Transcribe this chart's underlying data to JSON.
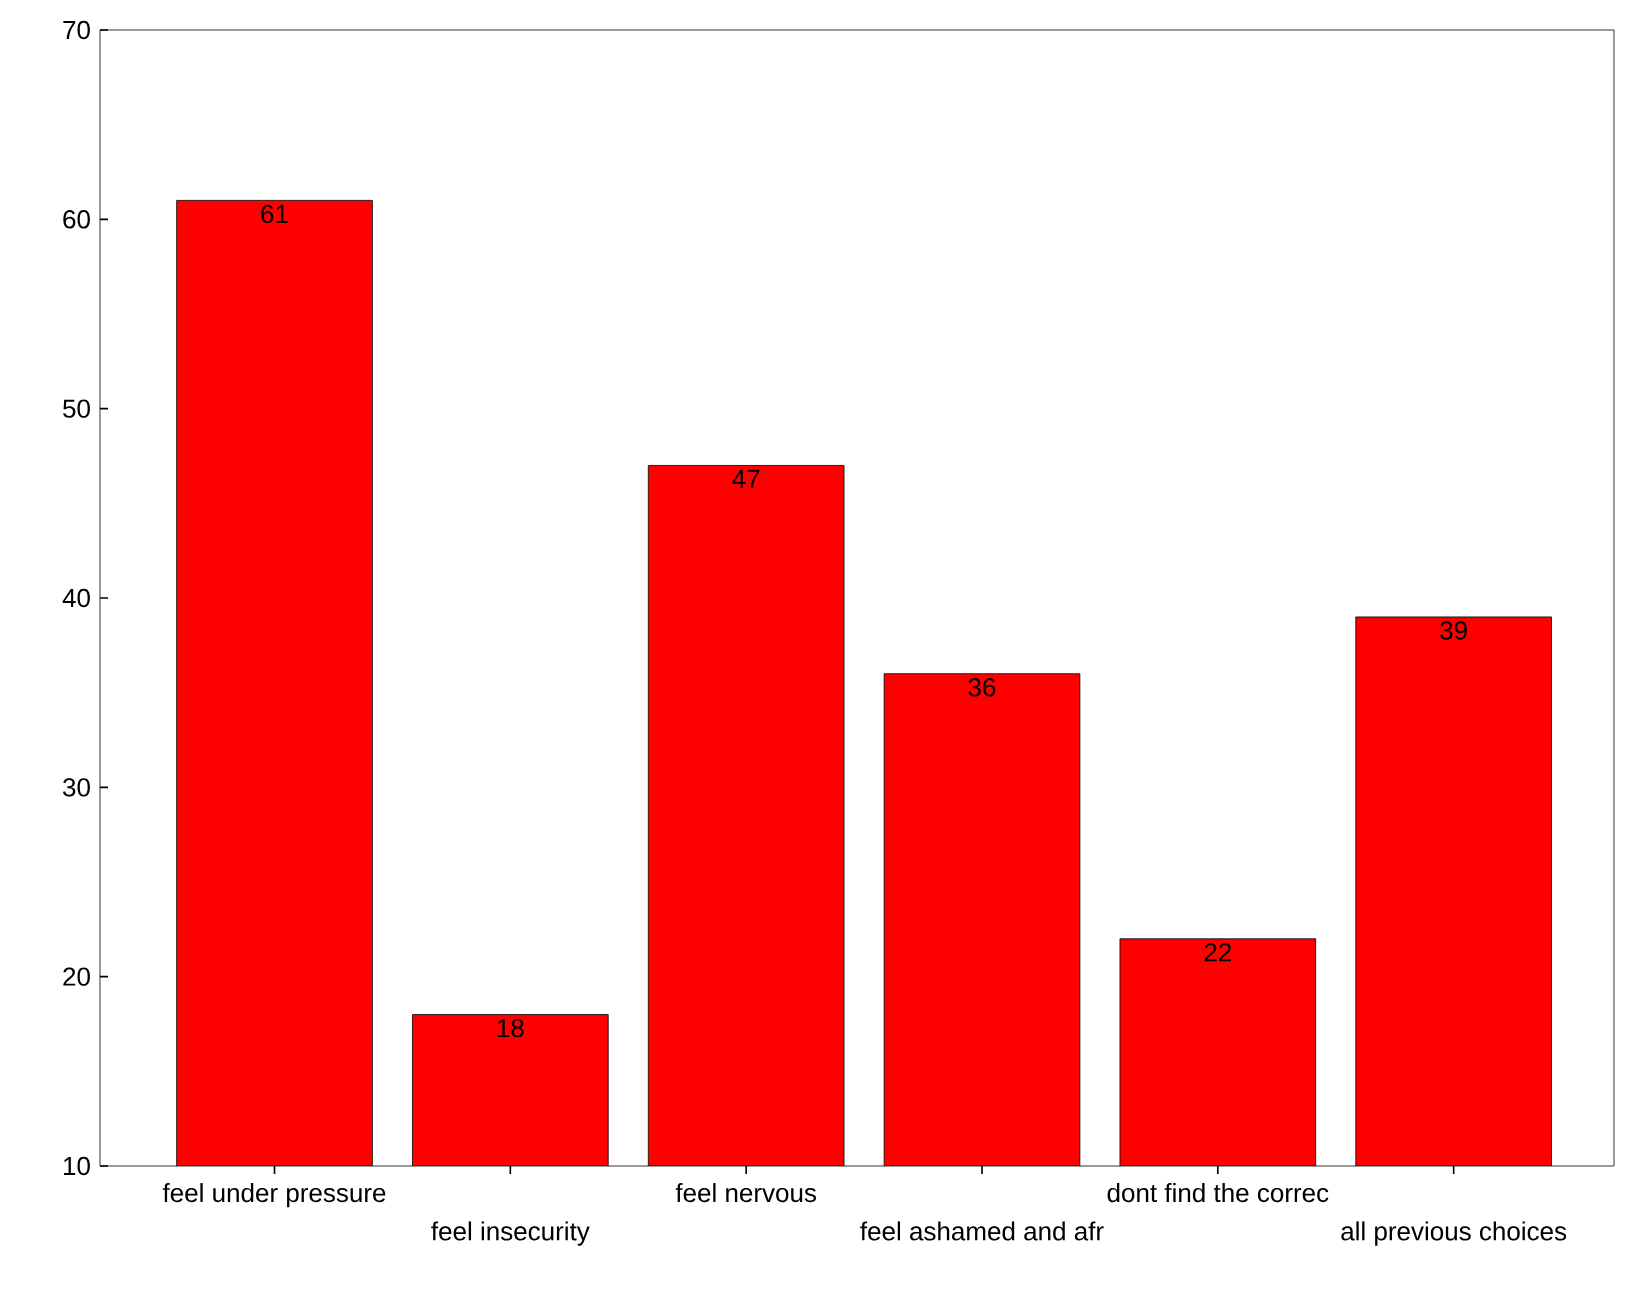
{
  "chart_data": {
    "type": "bar",
    "categories": [
      "feel under pressure",
      "feel insecurity",
      "feel nervous",
      "feel ashamed and afr",
      "dont find the correc",
      "all previous choices"
    ],
    "values": [
      61,
      18,
      47,
      36,
      22,
      39
    ],
    "color": "#ff0000",
    "ylim": [
      10,
      70
    ],
    "yticks": [
      10,
      20,
      30,
      40,
      50,
      60,
      70
    ],
    "data_labels": true
  }
}
